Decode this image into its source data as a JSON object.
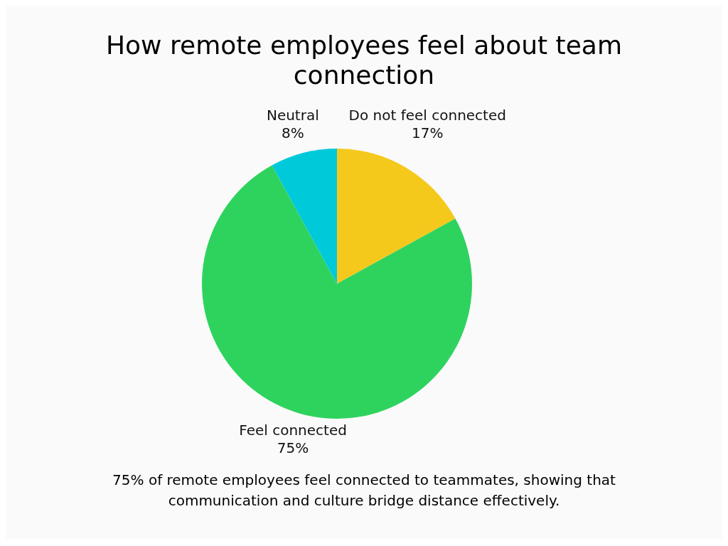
{
  "chart_data": {
    "type": "pie",
    "title": "How remote employees feel about team connection",
    "categories": [
      "Do not feel connected",
      "Feel connected",
      "Neutral"
    ],
    "values": [
      17,
      75,
      8
    ],
    "colors": [
      "#f5c91c",
      "#2ed35e",
      "#00c9da"
    ],
    "value_labels": [
      "17%",
      "75%",
      "8%"
    ],
    "annotations": [
      "75% of remote employees feel connected to teammates, showing that communication and culture bridge distance effectively."
    ]
  }
}
